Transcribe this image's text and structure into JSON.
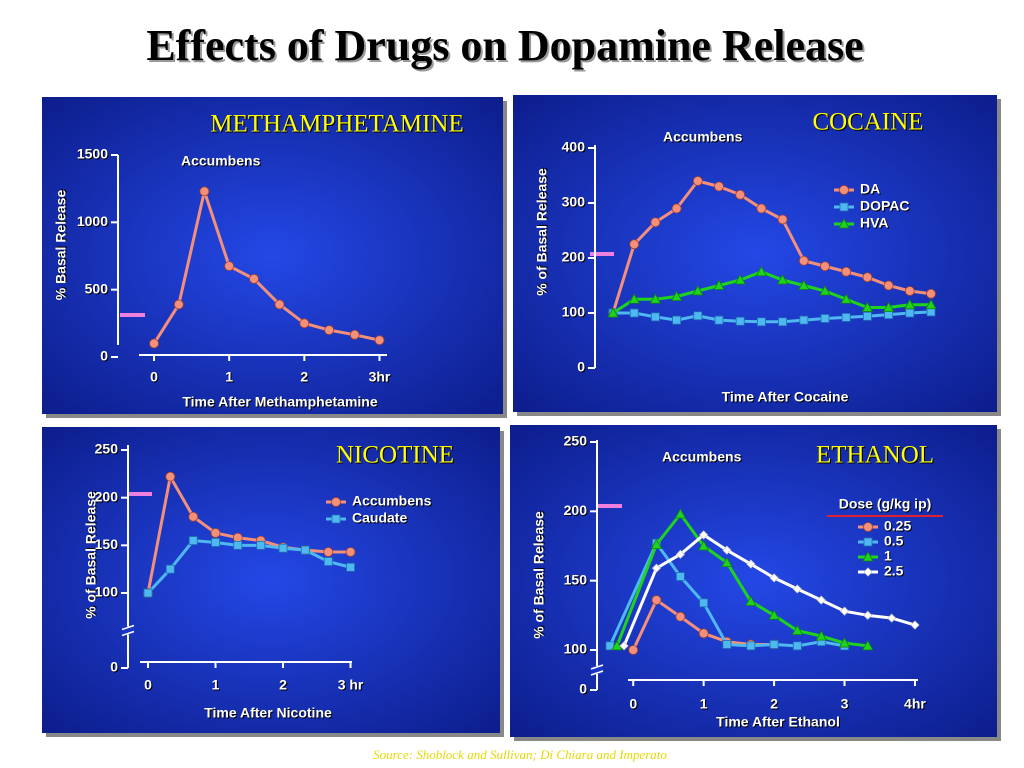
{
  "title": "Effects of Drugs on Dopamine Release",
  "source": "Source: Shoblock and Sullivan; Di Chiara and Imperato",
  "chart_data": [
    {
      "type": "line",
      "title": "METHAMPHETAMINE",
      "annotation": "Accumbens",
      "ylabel": "% Basal Release",
      "xlabel": "Time After Methamphetamine",
      "x": [
        0,
        0.33,
        0.67,
        1,
        1.33,
        1.67,
        2,
        2.33,
        2.67,
        3
      ],
      "values": [
        100,
        390,
        1230,
        675,
        580,
        390,
        250,
        200,
        165,
        125
      ],
      "color": "#f4907a",
      "marker": "circle",
      "xlim": [
        -0.2,
        3.1
      ],
      "ylim": [
        0,
        1500
      ],
      "xticks": [
        0,
        1,
        2,
        {
          "value": 3,
          "label": "3hr"
        }
      ],
      "yticks": [
        0,
        500,
        1000,
        1500
      ]
    },
    {
      "type": "line",
      "title": "COCAINE",
      "annotation": "Accumbens",
      "ylabel": "% of Basal Release",
      "xlabel": "Time After Cocaine",
      "categories": [
        null,
        null,
        null,
        null,
        null,
        null,
        null,
        null,
        null,
        null,
        null,
        null,
        null,
        null,
        null,
        null
      ],
      "series": [
        {
          "name": "DA",
          "color": "#f4907a",
          "marker": "circle",
          "values": [
            100,
            225,
            265,
            290,
            340,
            330,
            315,
            290,
            270,
            195,
            185,
            175,
            165,
            150,
            140,
            135
          ]
        },
        {
          "name": "DOPAC",
          "color": "#4fb8f0",
          "marker": "square",
          "values": [
            100,
            100,
            93,
            87,
            95,
            87,
            85,
            84,
            84,
            87,
            90,
            92,
            94,
            97,
            100,
            102
          ]
        },
        {
          "name": "HVA",
          "color": "#1ed21e",
          "marker": "triangle",
          "values": [
            100,
            125,
            125,
            130,
            140,
            150,
            160,
            175,
            160,
            150,
            140,
            125,
            110,
            110,
            115,
            115
          ]
        }
      ],
      "ylim": [
        0,
        400
      ],
      "yticks": [
        0,
        100,
        200,
        300,
        400
      ]
    },
    {
      "type": "line",
      "title": "NICOTINE",
      "ylabel": "% of Basal Release",
      "xlabel": "Time After Nicotine",
      "x": [
        0,
        0.33,
        0.67,
        1,
        1.33,
        1.67,
        2,
        2.33,
        2.67,
        3
      ],
      "series": [
        {
          "name": "Accumbens",
          "color": "#f4907a",
          "marker": "circle",
          "values": [
            100,
            222,
            180,
            163,
            158,
            155,
            148,
            145,
            143,
            143
          ]
        },
        {
          "name": "Caudate",
          "color": "#4fb8f0",
          "marker": "square",
          "values": [
            100,
            125,
            155,
            153,
            150,
            150,
            147,
            145,
            133,
            127
          ]
        }
      ],
      "xlim": [
        -0.2,
        3.1
      ],
      "ylim": [
        0,
        250
      ],
      "y_break": true,
      "xticks": [
        0,
        1,
        2,
        {
          "value": 3,
          "label": "3 hr"
        }
      ],
      "yticks": [
        0,
        100,
        150,
        200,
        250
      ]
    },
    {
      "type": "line",
      "title": "ETHANOL",
      "annotation": "Accumbens",
      "ylabel": "% of Basal Release",
      "xlabel": "Time After Ethanol",
      "legend_title": "Dose (g/kg ip)",
      "series": [
        {
          "name": "0.25",
          "color": "#f4907a",
          "marker": "circle",
          "x": [
            0,
            0.33,
            0.67,
            1,
            1.33,
            1.67,
            2
          ],
          "values": [
            100,
            136,
            124,
            112,
            106,
            104,
            104
          ]
        },
        {
          "name": "0.5",
          "color": "#4fb8f0",
          "marker": "square",
          "x": [
            -0.33,
            0.33,
            0.67,
            1,
            1.33,
            1.67,
            2,
            2.33,
            2.67,
            3
          ],
          "values": [
            103,
            177,
            153,
            134,
            104,
            103,
            104,
            103,
            106,
            103
          ]
        },
        {
          "name": "1",
          "color": "#1ed21e",
          "marker": "triangle",
          "x": [
            -0.23,
            0.33,
            0.67,
            1,
            1.33,
            1.67,
            2,
            2.33,
            2.67,
            3,
            3.33
          ],
          "values": [
            103,
            176,
            198,
            175,
            163,
            135,
            125,
            114,
            110,
            105,
            103
          ]
        },
        {
          "name": "2.5",
          "color": "#ffffff",
          "marker": "diamond",
          "x": [
            -0.13,
            0.33,
            0.67,
            1,
            1.33,
            1.67,
            2,
            2.33,
            2.67,
            3,
            3.33,
            3.67,
            4
          ],
          "values": [
            103,
            159,
            169,
            183,
            172,
            162,
            152,
            144,
            136,
            128,
            125,
            123,
            118
          ]
        }
      ],
      "xlim": [
        -0.5,
        4.1
      ],
      "ylim": [
        0,
        250
      ],
      "y_break": true,
      "xticks": [
        0,
        1,
        2,
        3,
        {
          "value": 4,
          "label": "4hr"
        }
      ],
      "yticks": [
        0,
        100,
        150,
        200,
        250
      ]
    }
  ]
}
